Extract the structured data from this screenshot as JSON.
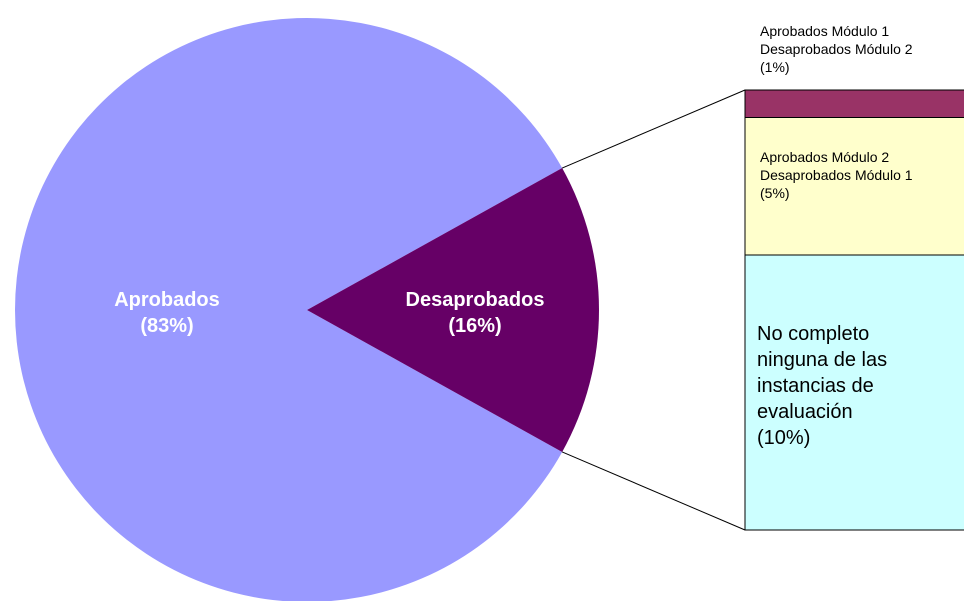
{
  "chart_data": {
    "type": "pie-of-bar",
    "categories": [
      "Aprobados",
      "Desaprobados"
    ],
    "values": [
      83,
      16
    ],
    "value_labels": [
      "(83%)",
      "(16%)"
    ],
    "colors": [
      "#9999ff",
      "#660066"
    ],
    "breakdown": {
      "categories": [
        "Aprobados Módulo 1 Desaprobados Módulo 2",
        "Aprobados Módulo 2 Desaprobados Módulo 1",
        "No completo ninguna de las instancias de evaluación"
      ],
      "values": [
        1,
        5,
        10
      ],
      "value_labels": [
        "(1%)",
        "(5%)",
        "(10%)"
      ],
      "colors": [
        "#993366",
        "#ffffcc",
        "#ccffff"
      ]
    }
  }
}
